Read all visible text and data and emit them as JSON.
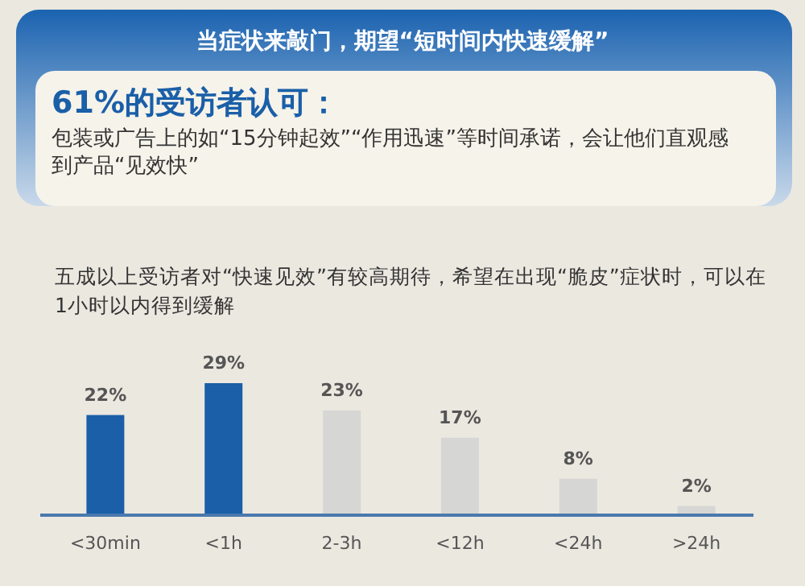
{
  "chart_data": {
    "type": "bar",
    "title": "当症状来敲门，期望“短时间内快速缓解”",
    "subtitle": "61%的受访者认可：",
    "annotations": [
      "包装或广告上的如“15分钟起效”“作用迅速”等时间承诺，会让他们直观感到产品“见效快”",
      "五成以上受访者对“快速见效”有较高期待，希望在出现“脆皮”症状时，可以在1小时以内得到缓解"
    ],
    "categories": [
      "<30min",
      "<1h",
      "2-3h",
      "<12h",
      "<24h",
      ">24h"
    ],
    "values": [
      22,
      29,
      23,
      17,
      8,
      2
    ],
    "colors": [
      "#1a5fa8",
      "#1a5fa8",
      "#d6d6d4",
      "#d6d6d4",
      "#d6d6d4",
      "#d6d6d4"
    ],
    "value_labels": [
      "22%",
      "29%",
      "23%",
      "17%",
      "8%",
      "2%"
    ]
  }
}
